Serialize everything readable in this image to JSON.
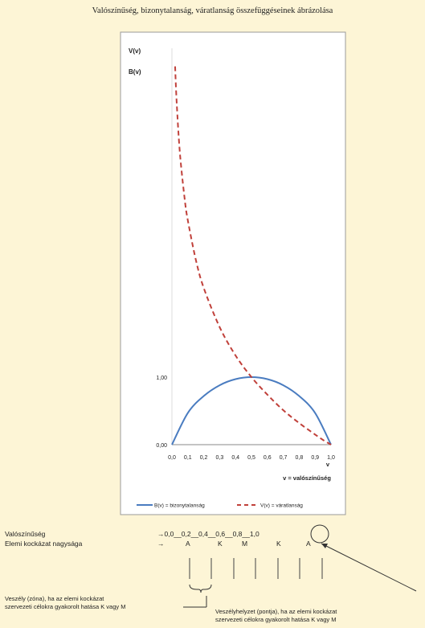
{
  "page": {
    "title": "Valószínűség, bizonytalanság, váratlanság összefüggéseinek ábrázolása"
  },
  "chart_data": {
    "type": "line",
    "x": [
      0.0,
      0.1,
      0.2,
      0.3,
      0.4,
      0.5,
      0.6,
      0.7,
      0.8,
      0.9,
      1.0
    ],
    "series": [
      {
        "name": "B(v) = bizonytalanság",
        "color": "#4a7cc0",
        "style": "solid",
        "values": [
          0.0,
          0.47,
          0.72,
          0.88,
          0.97,
          1.0,
          0.97,
          0.88,
          0.72,
          0.47,
          0.0
        ]
      },
      {
        "name": "V(v) = váratlanság",
        "color": "#c0403a",
        "style": "dashed",
        "x": [
          0.02,
          0.03,
          0.05,
          0.08,
          0.1,
          0.15,
          0.2,
          0.3,
          0.4,
          0.5,
          0.6,
          0.7,
          0.8,
          0.9,
          0.95,
          1.0
        ],
        "values": [
          5.6,
          5.06,
          4.32,
          3.64,
          3.32,
          2.74,
          2.32,
          1.74,
          1.32,
          1.0,
          0.74,
          0.51,
          0.32,
          0.15,
          0.07,
          0.0
        ]
      }
    ],
    "y_labels": [
      "V(v)",
      "B(v)"
    ],
    "y_ticks": [
      "0,00",
      "1,00"
    ],
    "x_ticks": [
      "0,0",
      "0,1",
      "0,2",
      "0,3",
      "0,4",
      "0,5",
      "0,6",
      "0,7",
      "0,8",
      "0,9",
      "1,0"
    ],
    "xlabel_letter": "v",
    "xlabel": "v = valószínűség",
    "xlim": [
      0,
      1
    ],
    "ylim": [
      0,
      5.8
    ],
    "grid": false,
    "legend_position": "bottom"
  },
  "scale": {
    "row1_label": "Valószínűség",
    "row2_label": "Elemi kockázat nagysága",
    "row1_values": "→0,0__0,2__0,4__0,6__0,8__1,0",
    "row2_arrow": "→",
    "row2_letters": [
      "A",
      "K",
      "M",
      "K",
      "A"
    ],
    "circled_value": "1,0"
  },
  "notes": {
    "zone": [
      "Veszély (zóna), ha az elemi kockázat",
      "szervezeti célokra gyakorolt hatása K vagy M"
    ],
    "point": [
      "Veszélyhelyzet (pontja), ha az elemi kockázat",
      "szervezeti célokra gyakorolt hatása K vagy M"
    ]
  }
}
